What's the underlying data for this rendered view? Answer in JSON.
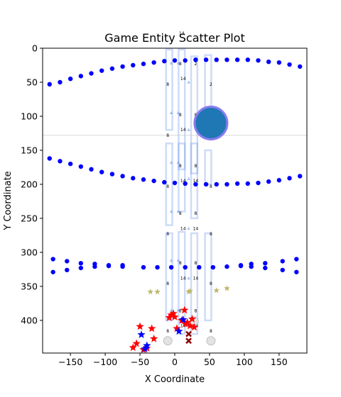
{
  "chart_data": {
    "type": "scatter",
    "title": "Game Entity Scatter Plot",
    "xlabel": "X Coordinate",
    "ylabel": "Y Coordinate",
    "xlim": [
      -190,
      190
    ],
    "ylim": [
      448,
      0
    ],
    "y_inverted": true,
    "x_ticks": [
      -150,
      -100,
      -50,
      0,
      50,
      100,
      150
    ],
    "x_tick_labels": [
      "−150",
      "−100",
      "−50",
      "0",
      "50",
      "100",
      "150"
    ],
    "y_ticks": [
      0,
      50,
      100,
      150,
      200,
      250,
      300,
      350,
      400
    ],
    "y_tick_labels": [
      "0",
      "50",
      "100",
      "150",
      "200",
      "250",
      "300",
      "350",
      "400"
    ],
    "grid": false,
    "reference_line_y": 128,
    "colors": {
      "track": "#0000ff",
      "red_star": "#ff0000",
      "blue_star": "#0000ff",
      "olive_star": "#bdb76b",
      "big_circle": "#1f77b4",
      "big_circle_ring": "#8a7cf0",
      "panel": "#6f98ee",
      "cross": "#8b0000",
      "grey_marker": "#dcdcdc"
    },
    "tracks": [
      {
        "points": [
          [
            -180,
            53
          ],
          [
            -165,
            50
          ],
          [
            -150,
            45
          ],
          [
            -135,
            41
          ],
          [
            -120,
            37
          ],
          [
            -105,
            33
          ],
          [
            -90,
            30
          ],
          [
            -75,
            27
          ],
          [
            -60,
            25
          ],
          [
            -45,
            23
          ],
          [
            -30,
            21
          ],
          [
            -15,
            19
          ],
          [
            0,
            18
          ],
          [
            15,
            18
          ],
          [
            30,
            17
          ],
          [
            45,
            17
          ],
          [
            60,
            17
          ],
          [
            75,
            17
          ],
          [
            90,
            17
          ],
          [
            105,
            17
          ],
          [
            120,
            18
          ],
          [
            135,
            20
          ],
          [
            150,
            21
          ],
          [
            165,
            24
          ],
          [
            180,
            27
          ]
        ]
      },
      {
        "points": [
          [
            -180,
            162
          ],
          [
            -165,
            166
          ],
          [
            -150,
            170
          ],
          [
            -135,
            174
          ],
          [
            -120,
            178
          ],
          [
            -105,
            182
          ],
          [
            -90,
            185
          ],
          [
            -75,
            188
          ],
          [
            -60,
            191
          ],
          [
            -45,
            193
          ],
          [
            -30,
            195
          ],
          [
            -15,
            197
          ],
          [
            0,
            198
          ],
          [
            15,
            199
          ],
          [
            30,
            200
          ],
          [
            45,
            200
          ],
          [
            60,
            200
          ],
          [
            75,
            200
          ],
          [
            90,
            199
          ],
          [
            105,
            199
          ],
          [
            120,
            198
          ],
          [
            135,
            196
          ],
          [
            150,
            194
          ],
          [
            165,
            191
          ],
          [
            180,
            188
          ]
        ]
      },
      {
        "points": [
          [
            -175,
            310
          ],
          [
            -175,
            329
          ],
          [
            -155,
            313
          ],
          [
            -155,
            326
          ],
          [
            -135,
            316
          ],
          [
            -135,
            323
          ],
          [
            -115,
            317
          ],
          [
            -115,
            321
          ],
          [
            -95,
            319
          ],
          [
            -95,
            320
          ],
          [
            -75,
            319
          ],
          [
            -75,
            321
          ],
          [
            -45,
            322
          ],
          [
            -25,
            322
          ],
          [
            -5,
            322
          ],
          [
            15,
            322
          ],
          [
            35,
            322
          ],
          [
            55,
            322
          ],
          [
            75,
            321
          ],
          [
            95,
            320
          ],
          [
            95,
            319
          ],
          [
            110,
            317
          ],
          [
            110,
            321
          ],
          [
            130,
            316
          ],
          [
            130,
            323
          ],
          [
            155,
            313
          ],
          [
            155,
            326
          ],
          [
            175,
            310
          ],
          [
            175,
            329
          ]
        ]
      }
    ],
    "panels": [
      {
        "x": -8,
        "y_top": 2,
        "y_bottom": 120,
        "label": "8"
      },
      {
        "x": 10,
        "y_top": 2,
        "y_bottom": 178,
        "label": "8"
      },
      {
        "x": 28,
        "y_top": 12,
        "y_bottom": 184,
        "label": "2"
      },
      {
        "x": 48,
        "y_top": 10,
        "y_bottom": 120,
        "label": "2"
      },
      {
        "x": -8,
        "y_top": 140,
        "y_bottom": 260,
        "label": "8"
      },
      {
        "x": 10,
        "y_top": 140,
        "y_bottom": 240,
        "label": "14"
      },
      {
        "x": 28,
        "y_top": 140,
        "y_bottom": 250,
        "label": "14"
      },
      {
        "x": 48,
        "y_top": 150,
        "y_bottom": 200,
        "label": "8"
      },
      {
        "x": -8,
        "y_top": 272,
        "y_bottom": 400,
        "label": "8"
      },
      {
        "x": 10,
        "y_top": 270,
        "y_bottom": 420,
        "label": "14"
      },
      {
        "x": 28,
        "y_top": 272,
        "y_bottom": 420,
        "label": "14"
      },
      {
        "x": 48,
        "y_top": 272,
        "y_bottom": 400,
        "label": "8"
      }
    ],
    "cell_labels": [
      {
        "x": 10,
        "y": -20,
        "text": "14"
      },
      {
        "x": 8,
        "y": 25,
        "text": "8"
      },
      {
        "x": 30,
        "y": 25,
        "text": "2"
      },
      {
        "x": 12,
        "y": 47,
        "text": "14"
      },
      {
        "x": -10,
        "y": 55,
        "text": "8"
      },
      {
        "x": 52,
        "y": 55,
        "text": "2"
      },
      {
        "x": 8,
        "y": 100,
        "text": "8"
      },
      {
        "x": 30,
        "y": 100,
        "text": "8"
      },
      {
        "x": 12,
        "y": 122,
        "text": "14"
      },
      {
        "x": -10,
        "y": 130,
        "text": "8"
      },
      {
        "x": 52,
        "y": 130,
        "text": "2"
      },
      {
        "x": 8,
        "y": 175,
        "text": "8"
      },
      {
        "x": 30,
        "y": 175,
        "text": "8"
      },
      {
        "x": 12,
        "y": 197,
        "text": "14"
      },
      {
        "x": 30,
        "y": 197,
        "text": "14"
      },
      {
        "x": -10,
        "y": 205,
        "text": "8"
      },
      {
        "x": 52,
        "y": 205,
        "text": "8"
      },
      {
        "x": 8,
        "y": 245,
        "text": "8"
      },
      {
        "x": 30,
        "y": 245,
        "text": "8"
      },
      {
        "x": 12,
        "y": 267,
        "text": "14"
      },
      {
        "x": 30,
        "y": 267,
        "text": "14"
      },
      {
        "x": -10,
        "y": 275,
        "text": "8"
      },
      {
        "x": 52,
        "y": 275,
        "text": "8"
      },
      {
        "x": 8,
        "y": 318,
        "text": "8"
      },
      {
        "x": 30,
        "y": 318,
        "text": "8"
      },
      {
        "x": 12,
        "y": 340,
        "text": "14"
      },
      {
        "x": 30,
        "y": 340,
        "text": "14"
      },
      {
        "x": -10,
        "y": 348,
        "text": "8"
      },
      {
        "x": 52,
        "y": 348,
        "text": "8"
      },
      {
        "x": 8,
        "y": 388,
        "text": "8"
      },
      {
        "x": 30,
        "y": 388,
        "text": "8"
      },
      {
        "x": 12,
        "y": 410,
        "text": "14"
      },
      {
        "x": 30,
        "y": 410,
        "text": "14"
      },
      {
        "x": -10,
        "y": 418,
        "text": "8"
      },
      {
        "x": 52,
        "y": 418,
        "text": "8"
      }
    ],
    "small_triangles": [
      [
        -5,
        22
      ],
      [
        5,
        22
      ],
      [
        -5,
        95
      ],
      [
        5,
        95
      ],
      [
        -5,
        168
      ],
      [
        5,
        168
      ],
      [
        -5,
        240
      ],
      [
        5,
        240
      ],
      [
        -5,
        312
      ],
      [
        5,
        312
      ],
      [
        -5,
        385
      ],
      [
        5,
        385
      ],
      [
        20,
        50
      ],
      [
        20,
        120
      ],
      [
        20,
        192
      ],
      [
        20,
        265
      ],
      [
        20,
        338
      ],
      [
        20,
        408
      ]
    ],
    "big_circle": {
      "x": 52,
      "y": 110,
      "radius_units": 24
    },
    "red_stars": [
      [
        -5,
        392
      ],
      [
        0,
        395
      ],
      [
        -8,
        396
      ],
      [
        14,
        385
      ],
      [
        -2,
        390
      ],
      [
        10,
        400
      ],
      [
        18,
        403
      ],
      [
        22,
        408
      ],
      [
        28,
        410
      ],
      [
        3,
        412
      ],
      [
        15,
        405
      ],
      [
        25,
        398
      ],
      [
        -33,
        412
      ],
      [
        -50,
        409
      ],
      [
        -30,
        427
      ],
      [
        -55,
        434
      ],
      [
        -60,
        440
      ],
      [
        -45,
        443
      ],
      [
        -40,
        441
      ]
    ],
    "blue_stars": [
      [
        12,
        399
      ],
      [
        6,
        416
      ],
      [
        -48,
        421
      ],
      [
        -43,
        442
      ],
      [
        -40,
        437
      ]
    ],
    "olive_stars": [
      [
        -35,
        358
      ],
      [
        -25,
        358
      ],
      [
        20,
        358
      ],
      [
        60,
        356
      ],
      [
        75,
        353
      ],
      [
        22,
        357
      ]
    ],
    "crosses": [
      [
        20,
        420
      ],
      [
        20,
        430
      ]
    ],
    "grey_markers": [
      [
        -10,
        430
      ],
      [
        52,
        430
      ],
      [
        28,
        401
      ]
    ]
  }
}
